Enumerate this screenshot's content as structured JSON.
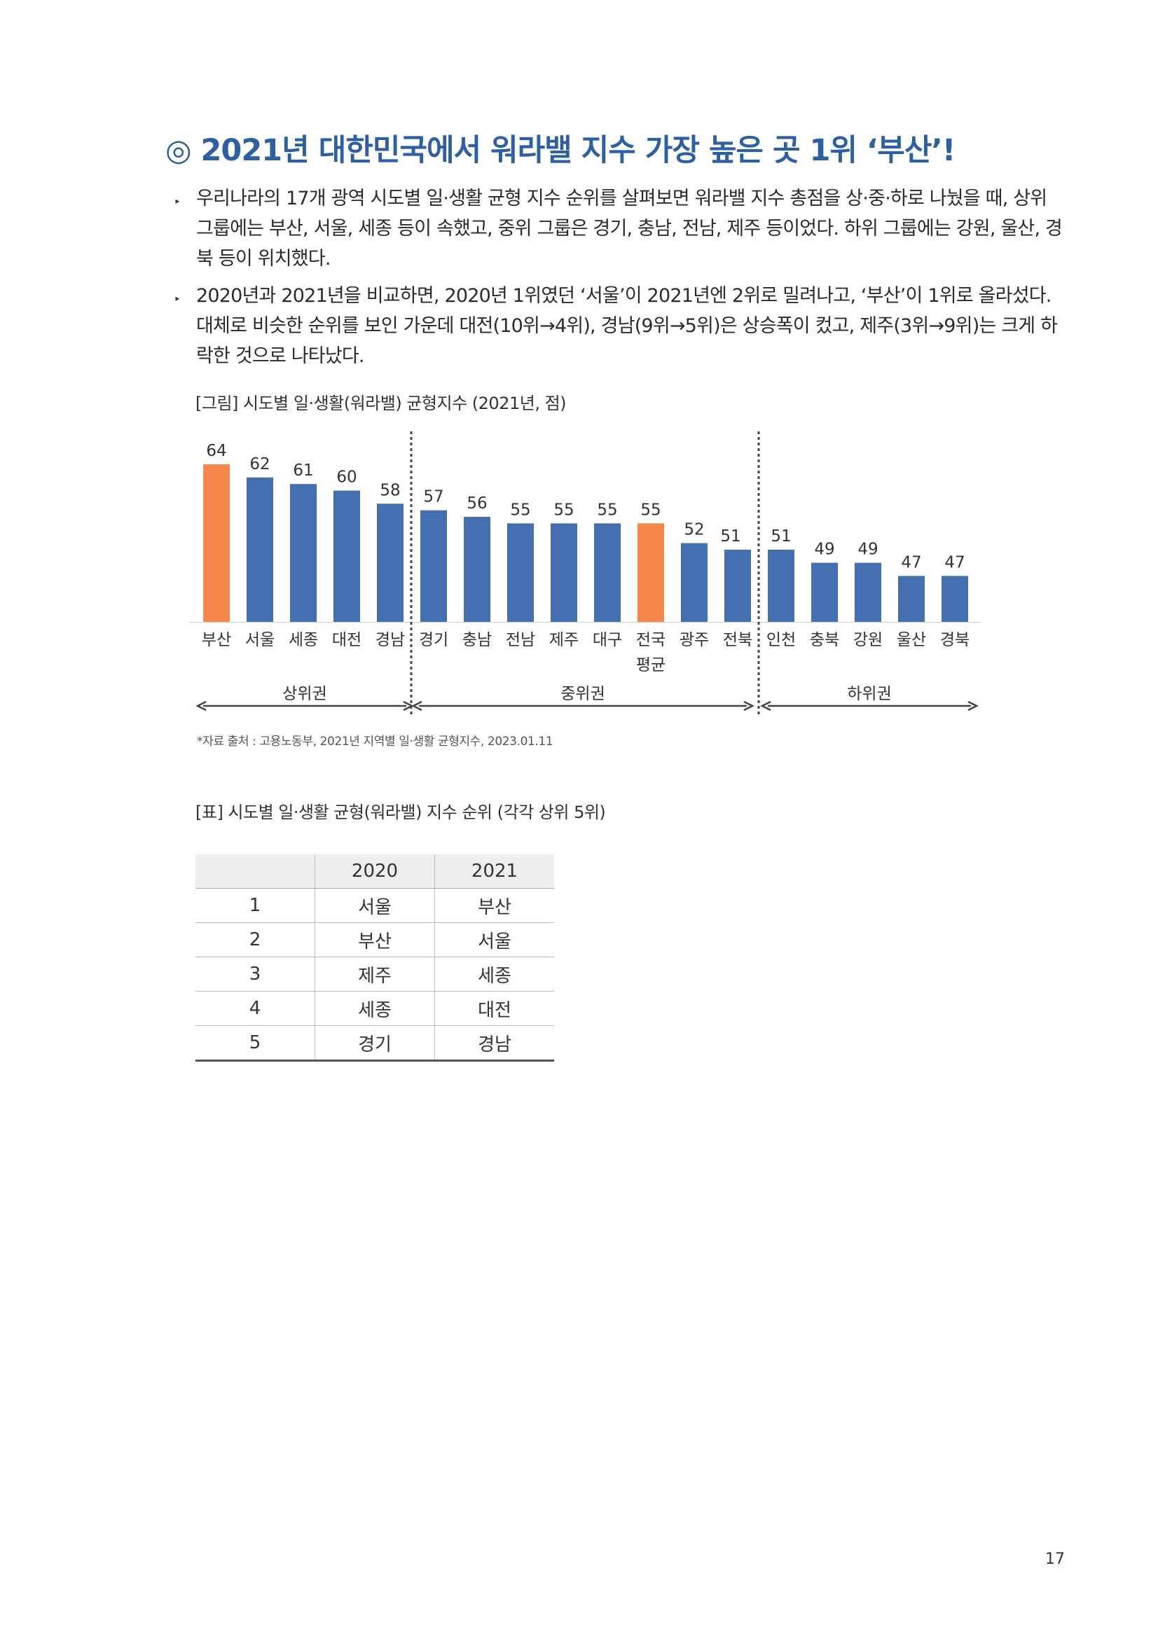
{
  "title": "◎ 2021년 대한민국에서 워라밸 지수 가장 높은 곳 1위 ‘부산’!",
  "bullets": [
    {
      "mark": "‣",
      "text": "우리나라의 17개 광역 시도별 일·생활 균형 지수 순위를 살펴보면 워라밸 지수 총점을 상·중·하로 나눴을 때, 상위 그룹에는 부산, 서울, 세종 등이 속했고, 중위 그룹은 경기, 충남, 전남, 제주 등이었다. 하위 그룹에는 강원, 울산, 경북 등이 위치했다."
    },
    {
      "mark": "‣",
      "text": "2020년과 2021년을 비교하면, 2020년 1위였던 ‘서울’이 2021년엔 2위로 밀려나고, ‘부산’이 1위로 올라섰다. 대체로 비슷한 순위를 보인 가운데 대전(10위→4위), 경남(9위→5위)은 상승폭이 컸고, 제주(3위→9위)는 크게 하락한 것으로 나타났다."
    }
  ],
  "figure_caption": "[그림] 시도별 일·생활(워라밸) 균형지수 (2021년, 점)",
  "chart_data": {
    "type": "bar",
    "title": "",
    "xlabel": "",
    "ylabel": "",
    "categories": [
      "부산",
      "서울",
      "세종",
      "대전",
      "경남",
      "경기",
      "충남",
      "전남",
      "제주",
      "대구",
      "전국 평균",
      "광주",
      "전북",
      "인천",
      "충북",
      "강원",
      "울산",
      "경북"
    ],
    "values": [
      64,
      62,
      61,
      60,
      58,
      57,
      56,
      55,
      55,
      55,
      55,
      52,
      51,
      51,
      49,
      49,
      47,
      47
    ],
    "highlight": [
      "부산",
      "전국 평균"
    ],
    "colors": {
      "default": "#4470b0",
      "highlight": "#f5874a"
    },
    "ylim": [
      0,
      64
    ],
    "grid": false,
    "groups": [
      {
        "label": "상위권",
        "from": "부산",
        "to": "경남"
      },
      {
        "label": "중위권",
        "from": "경기",
        "to": "전북"
      },
      {
        "label": "하위권",
        "from": "인천",
        "to": "경북"
      }
    ]
  },
  "source": "*자료 출처 : 고용노동부, 2021년 지역별 일·생활 균형지수, 2023.01.11",
  "table_caption": "[표] 시도별 일·생활 균형(워라밸) 지수 순위 (각각 상위 5위)",
  "table": {
    "headers": [
      "",
      "2020",
      "2021"
    ],
    "rows": [
      [
        "1",
        "서울",
        "부산"
      ],
      [
        "2",
        "부산",
        "서울"
      ],
      [
        "3",
        "제주",
        "세종"
      ],
      [
        "4",
        "세종",
        "대전"
      ],
      [
        "5",
        "경기",
        "경남"
      ]
    ]
  },
  "page_number": "17"
}
